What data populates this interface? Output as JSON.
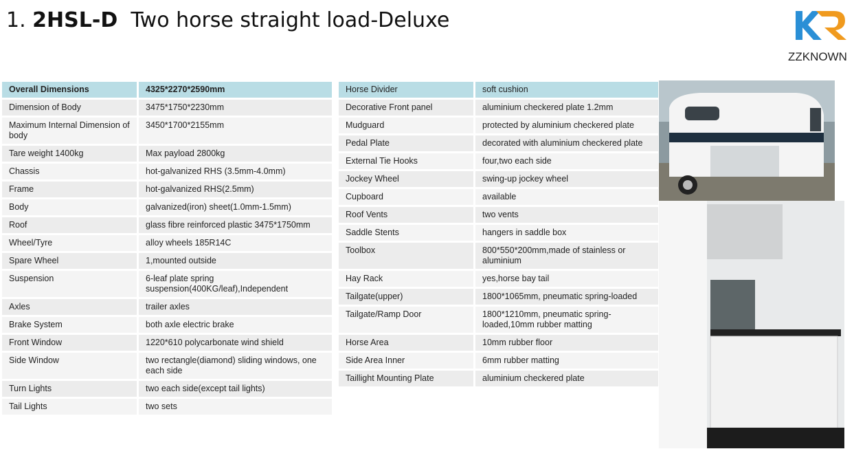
{
  "title": {
    "number": "1.",
    "model": "2HSL-D",
    "text": "Two horse straight load-Deluxe"
  },
  "logo": {
    "text": "ZZKNOWN"
  },
  "left_table": {
    "rows": [
      [
        "Overall Dimensions",
        "4325*2270*2590mm"
      ],
      [
        "Dimension of Body",
        "3475*1750*2230mm"
      ],
      [
        "Maximum Internal Dimension of body",
        "3450*1700*2155mm"
      ],
      [
        "Tare weight 1400kg",
        "Max payload 2800kg"
      ],
      [
        "Chassis",
        "hot-galvanized RHS (3.5mm-4.0mm)"
      ],
      [
        "Frame",
        "hot-galvanized RHS(2.5mm)"
      ],
      [
        "Body",
        "galvanized(iron) sheet(1.0mm-1.5mm)"
      ],
      [
        "Roof",
        "glass fibre reinforced plastic 3475*1750mm"
      ],
      [
        "Wheel/Tyre",
        "alloy wheels 185R14C"
      ],
      [
        "Spare Wheel",
        "1,mounted outside"
      ],
      [
        "Suspension",
        "6-leaf plate spring suspension(400KG/leaf),Independent"
      ],
      [
        "Axles",
        "trailer axles"
      ],
      [
        "Brake System",
        "both axle electric brake"
      ],
      [
        "Front Window",
        "1220*610 polycarbonate wind shield"
      ],
      [
        "Side Window",
        "two rectangle(diamond) sliding windows, one each side"
      ],
      [
        "Turn Lights",
        "two each side(except tail lights)"
      ],
      [
        "Tail Lights",
        "two sets"
      ]
    ]
  },
  "right_table": {
    "rows": [
      [
        "Horse Divider",
        "soft cushion"
      ],
      [
        "Decorative Front panel",
        "aluminium checkered plate 1.2mm"
      ],
      [
        "Mudguard",
        "protected by aluminium checkered plate"
      ],
      [
        "Pedal Plate",
        "decorated with aluminium checkered plate"
      ],
      [
        "External Tie Hooks",
        "four,two each side"
      ],
      [
        "Jockey Wheel",
        "swing-up jockey wheel"
      ],
      [
        "Cupboard",
        "available"
      ],
      [
        "Roof Vents",
        "two vents"
      ],
      [
        "Saddle Stents",
        "hangers in saddle box"
      ],
      [
        "Toolbox",
        "800*550*200mm,made of stainless or aluminium"
      ],
      [
        "Hay Rack",
        "yes,horse bay tail"
      ],
      [
        "Tailgate(upper)",
        "1800*1065mm, pneumatic spring-loaded"
      ],
      [
        "Tailgate/Ramp Door",
        "1800*1210mm, pneumatic spring-loaded,10mm rubber matting"
      ],
      [
        "Horse Area",
        "10mm rubber floor"
      ],
      [
        "Side Area Inner",
        "6mm rubber matting"
      ],
      [
        "Taillight Mounting Plate",
        "aluminium checkered plate"
      ]
    ]
  }
}
